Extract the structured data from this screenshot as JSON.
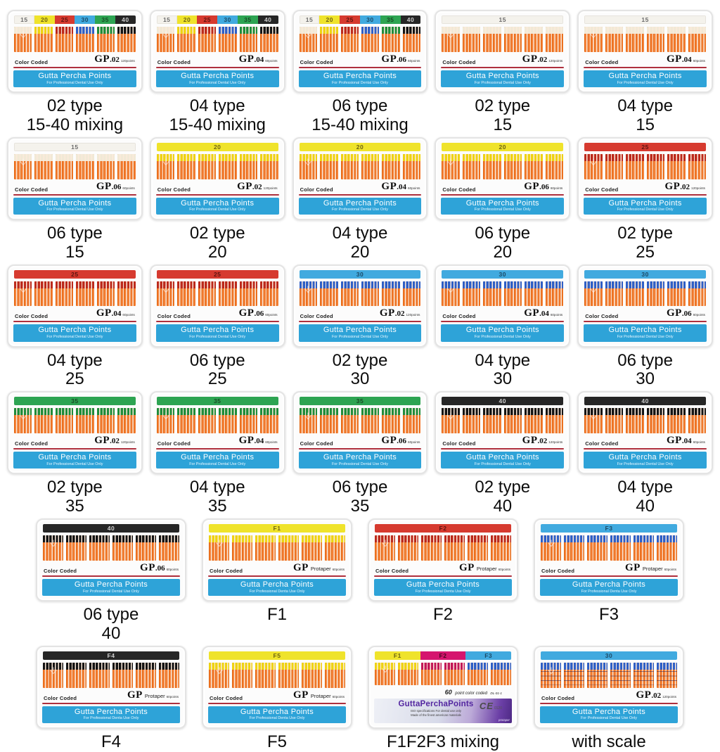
{
  "shared": {
    "color_coded": "Color Coded",
    "gp": "GP",
    "band_title": "Gutta Percha Points",
    "subtitle_dental": "For Professional Dental Use Only",
    "subtitle_denta": "For Professional Denta Use Only"
  },
  "palette": {
    "band_blue": "#2ea3d8",
    "divider_red": "#ae2f3d",
    "point_orange": "#e8690f",
    "case_white": "#fcfcfc"
  },
  "sizes": {
    "15": {
      "label": "15",
      "strip": "#f4f2ec",
      "tip": "#f1e9d6",
      "fg": "#6b6b6b"
    },
    "20": {
      "label": "20",
      "strip": "#efe32b",
      "tip": "#eed312",
      "fg": "#6d6414"
    },
    "25": {
      "label": "25",
      "strip": "#d63a2f",
      "tip": "#bc2a1c",
      "fg": "#5c1410"
    },
    "30": {
      "label": "30",
      "strip": "#41aadf",
      "tip": "#2e5fc6",
      "fg": "#1c4a66"
    },
    "35": {
      "label": "35",
      "strip": "#2da452",
      "tip": "#1f8c3a",
      "fg": "#174a24"
    },
    "40": {
      "label": "40",
      "strip": "#262626",
      "tip": "#141414",
      "fg": "#cfcfcf"
    },
    "F1": {
      "label": "F1",
      "strip": "#efe32b",
      "tip": "#eed312",
      "fg": "#6d6414"
    },
    "F2": {
      "label": "F2",
      "strip": "#d63a2f",
      "tip": "#bc2a1c",
      "fg": "#5c1410"
    },
    "F3": {
      "label": "F3",
      "strip": "#41aadf",
      "tip": "#2e5fc6",
      "fg": "#1c4a66"
    },
    "F4": {
      "label": "F4",
      "strip": "#262626",
      "tip": "#141414",
      "fg": "#cfcfcf"
    },
    "F5": {
      "label": "F5",
      "strip": "#efe32b",
      "tip": "#eed312",
      "fg": "#6d6414"
    },
    "F2MIX": {
      "label": "F2",
      "strip": "#d5156e",
      "tip": "#c21858",
      "fg": "#45061f"
    }
  },
  "rows": [
    [
      {
        "name": "gp02-15-40-mixing",
        "header": {
          "kind": "multi",
          "segments": [
            "15",
            "20",
            "25",
            "30",
            "35",
            "40"
          ]
        },
        "model": ".02",
        "points": "120points",
        "subtitle": "dental",
        "caption": [
          "02 type",
          "15-40 mixing"
        ]
      },
      {
        "name": "gp04-15-40-mixing",
        "header": {
          "kind": "multi",
          "segments": [
            "15",
            "20",
            "25",
            "30",
            "35",
            "40"
          ]
        },
        "model": ".04",
        "points": "60points",
        "subtitle": "dental",
        "caption": [
          "04 type",
          "15-40 mixing"
        ]
      },
      {
        "name": "gp06-15-40-mixing",
        "header": {
          "kind": "multi",
          "segments": [
            "15",
            "20",
            "25",
            "30",
            "35",
            "40"
          ]
        },
        "model": ".06",
        "points": "60points",
        "subtitle": "dental",
        "caption": [
          "06 type",
          "15-40 mixing"
        ]
      },
      {
        "name": "gp02-15",
        "header": {
          "kind": "single",
          "segments": [
            "15"
          ]
        },
        "model": ".02",
        "points": "120points",
        "subtitle": "dental",
        "caption": [
          "02 type",
          "15"
        ]
      },
      {
        "name": "gp04-15",
        "header": {
          "kind": "single",
          "segments": [
            "15"
          ]
        },
        "model": ".04",
        "points": "60points",
        "subtitle": "dental",
        "caption": [
          "04 type",
          "15"
        ]
      }
    ],
    [
      {
        "name": "gp06-15",
        "header": {
          "kind": "single",
          "segments": [
            "15"
          ]
        },
        "model": ".06",
        "points": "60points",
        "subtitle": "dental",
        "caption": [
          "06 type",
          "15"
        ]
      },
      {
        "name": "gp02-20",
        "header": {
          "kind": "single",
          "segments": [
            "20"
          ]
        },
        "model": ".02",
        "points": "120points",
        "subtitle": "dental",
        "caption": [
          "02 type",
          "20"
        ]
      },
      {
        "name": "gp04-20",
        "header": {
          "kind": "single",
          "segments": [
            "20"
          ]
        },
        "model": ".04",
        "points": "60points",
        "subtitle": "dental",
        "caption": [
          "04 type",
          "20"
        ]
      },
      {
        "name": "gp06-20",
        "header": {
          "kind": "single",
          "segments": [
            "20"
          ]
        },
        "model": ".06",
        "points": "60points",
        "subtitle": "dental",
        "caption": [
          "06 type",
          "20"
        ]
      },
      {
        "name": "gp02-25",
        "header": {
          "kind": "single",
          "segments": [
            "25"
          ]
        },
        "model": ".02",
        "points": "120points",
        "subtitle": "dental",
        "caption": [
          "02 type",
          "25"
        ]
      }
    ],
    [
      {
        "name": "gp04-25",
        "header": {
          "kind": "single",
          "segments": [
            "25"
          ]
        },
        "model": ".04",
        "points": "60points",
        "subtitle": "dental",
        "caption": [
          "04 type",
          "25"
        ]
      },
      {
        "name": "gp06-25",
        "header": {
          "kind": "single",
          "segments": [
            "25"
          ]
        },
        "model": ".06",
        "points": "60points",
        "subtitle": "dental",
        "caption": [
          "06 type",
          "25"
        ]
      },
      {
        "name": "gp02-30",
        "header": {
          "kind": "single",
          "segments": [
            "30"
          ]
        },
        "model": ".02",
        "points": "120points",
        "subtitle": "dental",
        "caption": [
          "02 type",
          "30"
        ]
      },
      {
        "name": "gp04-30",
        "header": {
          "kind": "single",
          "segments": [
            "30"
          ]
        },
        "model": ".04",
        "points": "60points",
        "subtitle": "dental",
        "caption": [
          "04 type",
          "30"
        ]
      },
      {
        "name": "gp06-30",
        "header": {
          "kind": "single",
          "segments": [
            "30"
          ]
        },
        "model": ".06",
        "points": "60points",
        "subtitle": "dental",
        "caption": [
          "06 type",
          "30"
        ]
      }
    ],
    [
      {
        "name": "gp02-35",
        "header": {
          "kind": "single",
          "segments": [
            "35"
          ]
        },
        "model": ".02",
        "points": "120points",
        "subtitle": "dental",
        "caption": [
          "02 type",
          "35"
        ]
      },
      {
        "name": "gp04-35",
        "header": {
          "kind": "single",
          "segments": [
            "35"
          ]
        },
        "model": ".04",
        "points": "60points",
        "subtitle": "dental",
        "caption": [
          "04 type",
          "35"
        ]
      },
      {
        "name": "gp06-35",
        "header": {
          "kind": "single",
          "segments": [
            "35"
          ]
        },
        "model": ".06",
        "points": "60points",
        "subtitle": "dental",
        "caption": [
          "06 type",
          "35"
        ]
      },
      {
        "name": "gp02-40",
        "header": {
          "kind": "single",
          "segments": [
            "40"
          ]
        },
        "model": ".02",
        "points": "120points",
        "subtitle": "dental",
        "caption": [
          "02 type",
          "40"
        ]
      },
      {
        "name": "gp04-40",
        "header": {
          "kind": "single",
          "segments": [
            "40"
          ]
        },
        "model": ".04",
        "points": "60points",
        "subtitle": "dental",
        "caption": [
          "04 type",
          "40"
        ]
      }
    ],
    [
      {
        "name": "gp06-40",
        "header": {
          "kind": "single",
          "segments": [
            "40"
          ]
        },
        "model": ".06",
        "points": "60points",
        "subtitle": "dental",
        "caption": [
          "06 type",
          "40"
        ]
      },
      {
        "name": "protaper-f1",
        "header": {
          "kind": "single",
          "segments": [
            "F1"
          ]
        },
        "model": "Protaper",
        "points": "60points",
        "subtitle": "denta",
        "caption": [
          "F1"
        ]
      },
      {
        "name": "protaper-f2",
        "header": {
          "kind": "single",
          "segments": [
            "F2"
          ]
        },
        "model": "Protaper",
        "points": "60points",
        "subtitle": "denta",
        "caption": [
          "F2"
        ]
      },
      {
        "name": "protaper-f3",
        "header": {
          "kind": "single",
          "segments": [
            "F3"
          ]
        },
        "model": "Protaper",
        "points": "60points",
        "subtitle": "denta",
        "caption": [
          "F3"
        ]
      }
    ],
    [
      {
        "name": "protaper-f4",
        "header": {
          "kind": "single",
          "segments": [
            "F4"
          ]
        },
        "model": "Protaper",
        "points": "60points",
        "subtitle": "denta",
        "caption": [
          "F4"
        ]
      },
      {
        "name": "protaper-f5",
        "header": {
          "kind": "single",
          "segments": [
            "F5"
          ]
        },
        "model": "Protaper",
        "points": "60points",
        "subtitle": "denta",
        "caption": [
          "F5"
        ]
      },
      {
        "name": "protaper-f1f2f3-mixing",
        "variant": "mix3",
        "header": {
          "kind": "triple",
          "segments": [
            "F1",
            "F2MIX",
            "F3"
          ]
        },
        "caption": [
          "F1F2F3 mixing"
        ],
        "mix": {
          "count": "60",
          "points_text": "point color coded",
          "code": "DL-01-1",
          "brand": "GuttaPerchaPoints",
          "iso": "ISO specifications For dental use only",
          "made": "Made of the finest american materials",
          "ce": "CE",
          "ce_num": "0120",
          "corner": "protaper"
        }
      },
      {
        "name": "gp02-30-with-scale",
        "header": {
          "kind": "single",
          "segments": [
            "30"
          ]
        },
        "model": ".02",
        "points": "120points",
        "subtitle": "dental",
        "caption": [
          "with scale"
        ],
        "scale": true
      }
    ]
  ]
}
